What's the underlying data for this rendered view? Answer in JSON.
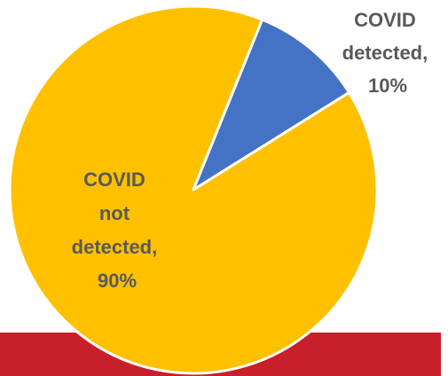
{
  "chart_data": {
    "type": "pie",
    "title": "",
    "start_angle_deg": 22,
    "slices": [
      {
        "name": "COVID detected",
        "value": 10,
        "color": "#4472C4",
        "label_lines": [
          "COVID",
          "detected,",
          "10%"
        ]
      },
      {
        "name": "COVID not detected",
        "value": 90,
        "color": "#FFC000",
        "label_lines": [
          "COVID",
          "not",
          "detected,",
          "90%"
        ]
      }
    ],
    "label_color": "#595959",
    "slice_border_color": "#ffffff"
  },
  "decor": {
    "bottom_band_color": "#C8202A"
  }
}
